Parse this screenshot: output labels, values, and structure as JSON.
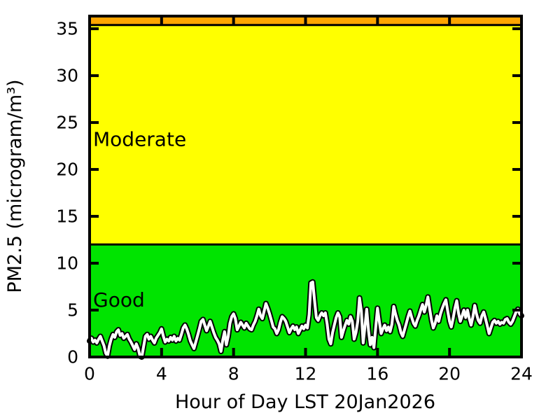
{
  "figure": {
    "background": "#ffffff",
    "frame_color": "#000000"
  },
  "chart_data": {
    "type": "line",
    "xlabel": "Hour of Day LST 20Jan2026",
    "ylabel": "PM2.5 (microgram/m³)",
    "xlim": [
      0,
      24
    ],
    "ylim": [
      0,
      36.35
    ],
    "xticks": [
      0,
      4,
      8,
      12,
      16,
      20,
      24
    ],
    "yticks": [
      0,
      5,
      10,
      15,
      20,
      25,
      30,
      35
    ],
    "grid": false,
    "legend": "none",
    "bands": [
      {
        "label": "Good",
        "from": 0,
        "to": 12,
        "color": "#00e400",
        "label_color": "#000000",
        "label_at": 6.1
      },
      {
        "label": "Moderate",
        "from": 12,
        "to": 35.4,
        "color": "#ffff00",
        "label_color": "#000000",
        "label_at": 23.2
      },
      {
        "label": "",
        "from": 35.4,
        "to": 36.35,
        "color": "#ffa500",
        "label_color": "#000000",
        "label_at": 35.9
      }
    ],
    "series": [
      {
        "name": "PM2.5",
        "color": "#ffffff",
        "outline_color": "#000000",
        "x_start": 0,
        "x_step": 0.1,
        "values": [
          1.7,
          2.0,
          1.6,
          1.8,
          1.5,
          1.9,
          2.2,
          1.7,
          1.2,
          0.4,
          0.1,
          1.2,
          1.9,
          2.4,
          2.1,
          2.7,
          2.9,
          2.3,
          2.5,
          2.0,
          2.2,
          2.4,
          1.9,
          1.6,
          1.2,
          0.8,
          1.4,
          0.9,
          0.1,
          0.0,
          1.1,
          2.2,
          2.4,
          1.9,
          2.2,
          1.8,
          1.5,
          2.0,
          2.3,
          2.6,
          3.0,
          2.2,
          1.6,
          1.9,
          1.7,
          2.1,
          1.8,
          2.2,
          1.7,
          2.0,
          1.8,
          2.4,
          3.1,
          3.4,
          3.0,
          2.4,
          1.7,
          1.3,
          0.9,
          1.6,
          2.3,
          3.0,
          3.8,
          4.0,
          3.4,
          2.8,
          3.3,
          3.8,
          3.2,
          2.6,
          2.1,
          1.8,
          1.4,
          0.6,
          1.8,
          2.7,
          1.3,
          2.2,
          3.6,
          4.3,
          4.6,
          4.1,
          2.9,
          3.3,
          3.7,
          3.4,
          3.1,
          3.6,
          3.3,
          3.0,
          2.9,
          3.4,
          3.8,
          4.4,
          5.1,
          4.4,
          4.1,
          4.9,
          5.7,
          5.2,
          4.6,
          3.9,
          3.2,
          3.0,
          2.5,
          2.9,
          3.7,
          4.3,
          4.1,
          3.8,
          3.2,
          2.6,
          3.0,
          3.3,
          2.9,
          3.2,
          2.5,
          2.9,
          3.3,
          3.0,
          3.4,
          3.1,
          4.5,
          7.9,
          8.0,
          6.0,
          4.2,
          3.9,
          4.4,
          4.7,
          4.4,
          4.7,
          3.5,
          1.9,
          1.4,
          2.6,
          3.4,
          4.2,
          4.7,
          4.3,
          2.1,
          2.8,
          3.4,
          3.9,
          3.5,
          4.3,
          3.8,
          1.9,
          2.6,
          3.8,
          6.3,
          4.9,
          1.5,
          3.2,
          5.1,
          2.8,
          1.3,
          2.1,
          1.0,
          3.2,
          5.2,
          3.8,
          2.5,
          3.0,
          3.4,
          2.8,
          3.2,
          2.7,
          3.5,
          5.4,
          4.6,
          3.9,
          3.4,
          2.6,
          2.2,
          2.9,
          3.6,
          4.3,
          4.9,
          4.2,
          3.6,
          3.3,
          3.9,
          4.4,
          5.0,
          5.6,
          4.8,
          5.5,
          6.4,
          5.1,
          3.9,
          3.1,
          3.6,
          4.4,
          3.8,
          4.6,
          5.2,
          5.7,
          6.1,
          4.9,
          3.8,
          3.2,
          4.1,
          5.2,
          6.0,
          4.7,
          3.8,
          4.4,
          5.0,
          4.2,
          5.0,
          4.1,
          3.4,
          4.3,
          5.5,
          4.6,
          3.9,
          3.6,
          4.4,
          4.8,
          4.1,
          3.3,
          2.5,
          3.1,
          3.7,
          3.9,
          3.6,
          3.8,
          3.5,
          3.7,
          3.6,
          4.0,
          4.1,
          3.7,
          3.5,
          3.8,
          4.3,
          4.8,
          5.1,
          4.6,
          4.4
        ]
      }
    ]
  }
}
